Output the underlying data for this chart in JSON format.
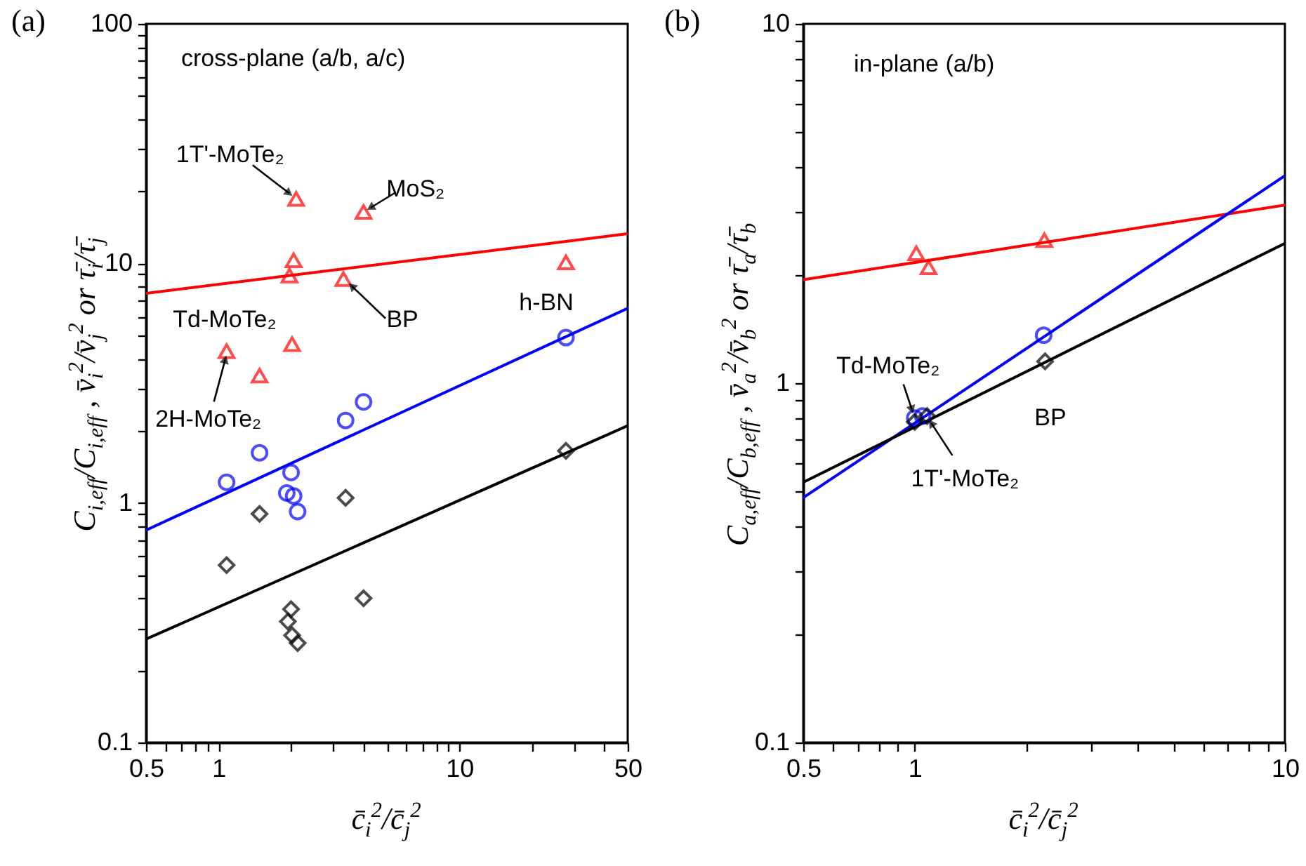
{
  "chart_data": [
    {
      "type": "scatter",
      "title": "(a)",
      "xlabel": "c̄$_{i}$$^{2}$/c̄$_{j}$$^{2}$",
      "ylabel": "C$_{i,eff}$/C$_{i,eff}$ , v̄$_{i}$$^{2}$/v̄$_{j}$$^{2}$ or τ̄$_{i}$/τ̄$_{j}$",
      "log": "xy",
      "grid": false,
      "xlim": [
        0.5,
        50
      ],
      "ylim": [
        0.1,
        100
      ],
      "xticks": [
        0.5,
        {
          "value": 0.6,
          "label": null
        },
        {
          "value": 0.7,
          "label": null
        },
        {
          "value": 0.8,
          "label": null
        },
        {
          "value": 0.9,
          "label": null
        },
        1,
        {
          "value": 2,
          "label": null
        },
        {
          "value": 3,
          "label": null
        },
        {
          "value": 4,
          "label": null
        },
        {
          "value": 5,
          "label": null
        },
        {
          "value": 6,
          "label": null
        },
        {
          "value": 7,
          "label": null
        },
        {
          "value": 8,
          "label": null
        },
        {
          "value": 9,
          "label": null
        },
        10,
        {
          "value": 20,
          "label": null
        },
        {
          "value": 30,
          "label": null
        },
        {
          "value": 40,
          "label": null
        },
        50
      ],
      "yticks": [
        0.1,
        {
          "value": 0.2,
          "label": null
        },
        {
          "value": 0.3,
          "label": null
        },
        {
          "value": 0.4,
          "label": null
        },
        {
          "value": 0.5,
          "label": null
        },
        {
          "value": 0.6,
          "label": null
        },
        {
          "value": 0.7,
          "label": null
        },
        {
          "value": 0.8,
          "label": null
        },
        {
          "value": 0.9,
          "label": null
        },
        1,
        {
          "value": 2,
          "label": null
        },
        {
          "value": 3,
          "label": null
        },
        {
          "value": 4,
          "label": null
        },
        {
          "value": 5,
          "label": null
        },
        {
          "value": 6,
          "label": null
        },
        {
          "value": 7,
          "label": null
        },
        {
          "value": 8,
          "label": null
        },
        {
          "value": 9,
          "label": null
        },
        10,
        {
          "value": 20,
          "label": null
        },
        {
          "value": 30,
          "label": null
        },
        {
          "value": 40,
          "label": null
        },
        {
          "value": 50,
          "label": null
        },
        {
          "value": 60,
          "label": null
        },
        {
          "value": 70,
          "label": null
        },
        {
          "value": 80,
          "label": null
        },
        {
          "value": 90,
          "label": null
        },
        100
      ],
      "annotations": [
        "cross-plane (a/b, a/c)",
        {
          "text": "1T'-MoTe₂",
          "x": 2.1,
          "y": 18.6
        },
        {
          "text": "MoS₂",
          "x": 4.0,
          "y": 16.4
        },
        {
          "text": "BP",
          "x": 3.3,
          "y": 8.6
        },
        "Td-MoTe₂",
        {
          "text": "2H-MoTe₂",
          "x": 1.08,
          "y": 4.3
        },
        "h-BN"
      ],
      "series": [
        {
          "type": "line",
          "color": "#ff0000",
          "x": [
            0.5,
            50
          ],
          "values": [
            7.5,
            13.3
          ],
          "line_style": "solid"
        },
        {
          "type": "line",
          "color": "#0000ff",
          "x": [
            0.5,
            50
          ],
          "values": [
            0.77,
            6.5
          ],
          "line_style": "solid"
        },
        {
          "type": "line",
          "color": "#000000",
          "x": [
            0.5,
            50
          ],
          "values": [
            0.27,
            2.1
          ],
          "line_style": "solid"
        },
        {
          "color": "#ff0000",
          "marker": "triangle",
          "x": [
            2.1,
            4.0,
            2.05,
            1.97,
            3.3,
            27.7,
            2.02,
            1.08,
            1.48
          ],
          "values": [
            18.6,
            16.4,
            10.3,
            8.9,
            8.6,
            10.1,
            4.6,
            4.3,
            3.4
          ]
        },
        {
          "color": "#0000ff",
          "marker": "circle",
          "x": [
            27.7,
            4.0,
            3.37,
            1.48,
            1.08,
            2.0,
            1.92,
            2.05,
            2.13
          ],
          "values": [
            4.9,
            2.64,
            2.21,
            1.62,
            1.22,
            1.34,
            1.1,
            1.07,
            0.92
          ]
        },
        {
          "color": "#000000",
          "marker": "diamond",
          "x": [
            27.7,
            1.48,
            3.37,
            1.08,
            4.0,
            2.0,
            1.94,
            2.02,
            2.13
          ],
          "values": [
            1.65,
            0.9,
            1.05,
            0.55,
            0.4,
            0.36,
            0.32,
            0.28,
            0.26
          ]
        }
      ]
    },
    {
      "type": "scatter",
      "title": "(b)",
      "xlabel": "c̄$_{i}$$^{2}$/c̄$_{j}$$^{2}$",
      "ylabel": "C$_{a,eff}$/C$_{b,eff}$ , v̄$_{a}$$^{2}$/v̄$_{b}$$^{2}$ or τ̄$_{a}$/τ̄$_{b}$",
      "log": "xy",
      "grid": false,
      "xlim": [
        0.5,
        10
      ],
      "ylim": [
        0.1,
        10
      ],
      "xticks": [
        0.5,
        {
          "value": 0.6,
          "label": null
        },
        {
          "value": 0.7,
          "label": null
        },
        {
          "value": 0.8,
          "label": null
        },
        {
          "value": 0.9,
          "label": null
        },
        1,
        {
          "value": 2,
          "label": null
        },
        {
          "value": 3,
          "label": null
        },
        {
          "value": 4,
          "label": null
        },
        {
          "value": 5,
          "label": null
        },
        {
          "value": 6,
          "label": null
        },
        {
          "value": 7,
          "label": null
        },
        {
          "value": 8,
          "label": null
        },
        {
          "value": 9,
          "label": null
        },
        10
      ],
      "yticks": [
        0.1,
        {
          "value": 0.2,
          "label": null
        },
        {
          "value": 0.3,
          "label": null
        },
        {
          "value": 0.4,
          "label": null
        },
        {
          "value": 0.5,
          "label": null
        },
        {
          "value": 0.6,
          "label": null
        },
        {
          "value": 0.7,
          "label": null
        },
        {
          "value": 0.8,
          "label": null
        },
        {
          "value": 0.9,
          "label": null
        },
        1,
        {
          "value": 2,
          "label": null
        },
        {
          "value": 3,
          "label": null
        },
        {
          "value": 4,
          "label": null
        },
        {
          "value": 5,
          "label": null
        },
        {
          "value": 6,
          "label": null
        },
        {
          "value": 7,
          "label": null
        },
        {
          "value": 8,
          "label": null
        },
        {
          "value": 9,
          "label": null
        },
        10
      ],
      "annotations": [
        "in-plane (a/b)",
        {
          "text": "Td-MoTe₂",
          "x": 1.0,
          "y": 0.8
        },
        "BP",
        {
          "text": "1T'-MoTe₂",
          "x": 1.08,
          "y": 0.81
        }
      ],
      "series": [
        {
          "type": "line",
          "color": "#ff0000",
          "x": [
            0.5,
            10
          ],
          "values": [
            1.94,
            3.13
          ],
          "line_style": "solid"
        },
        {
          "type": "line",
          "color": "#0000ff",
          "x": [
            0.5,
            10
          ],
          "values": [
            0.48,
            3.78
          ],
          "line_style": "solid"
        },
        {
          "type": "line",
          "color": "#000000",
          "x": [
            0.5,
            10
          ],
          "values": [
            0.53,
            2.45
          ],
          "line_style": "solid"
        },
        {
          "color": "#ff0000",
          "marker": "triangle",
          "x": [
            1.01,
            1.09,
            2.24
          ],
          "values": [
            2.3,
            2.1,
            2.5
          ]
        },
        {
          "color": "#0000ff",
          "marker": "circle",
          "x": [
            1.0,
            1.05,
            2.23
          ],
          "values": [
            0.8,
            0.81,
            1.36
          ]
        },
        {
          "color": "#000000",
          "marker": "diamond",
          "x": [
            1.0,
            1.08,
            2.25
          ],
          "values": [
            0.78,
            0.81,
            1.15
          ]
        }
      ]
    }
  ]
}
